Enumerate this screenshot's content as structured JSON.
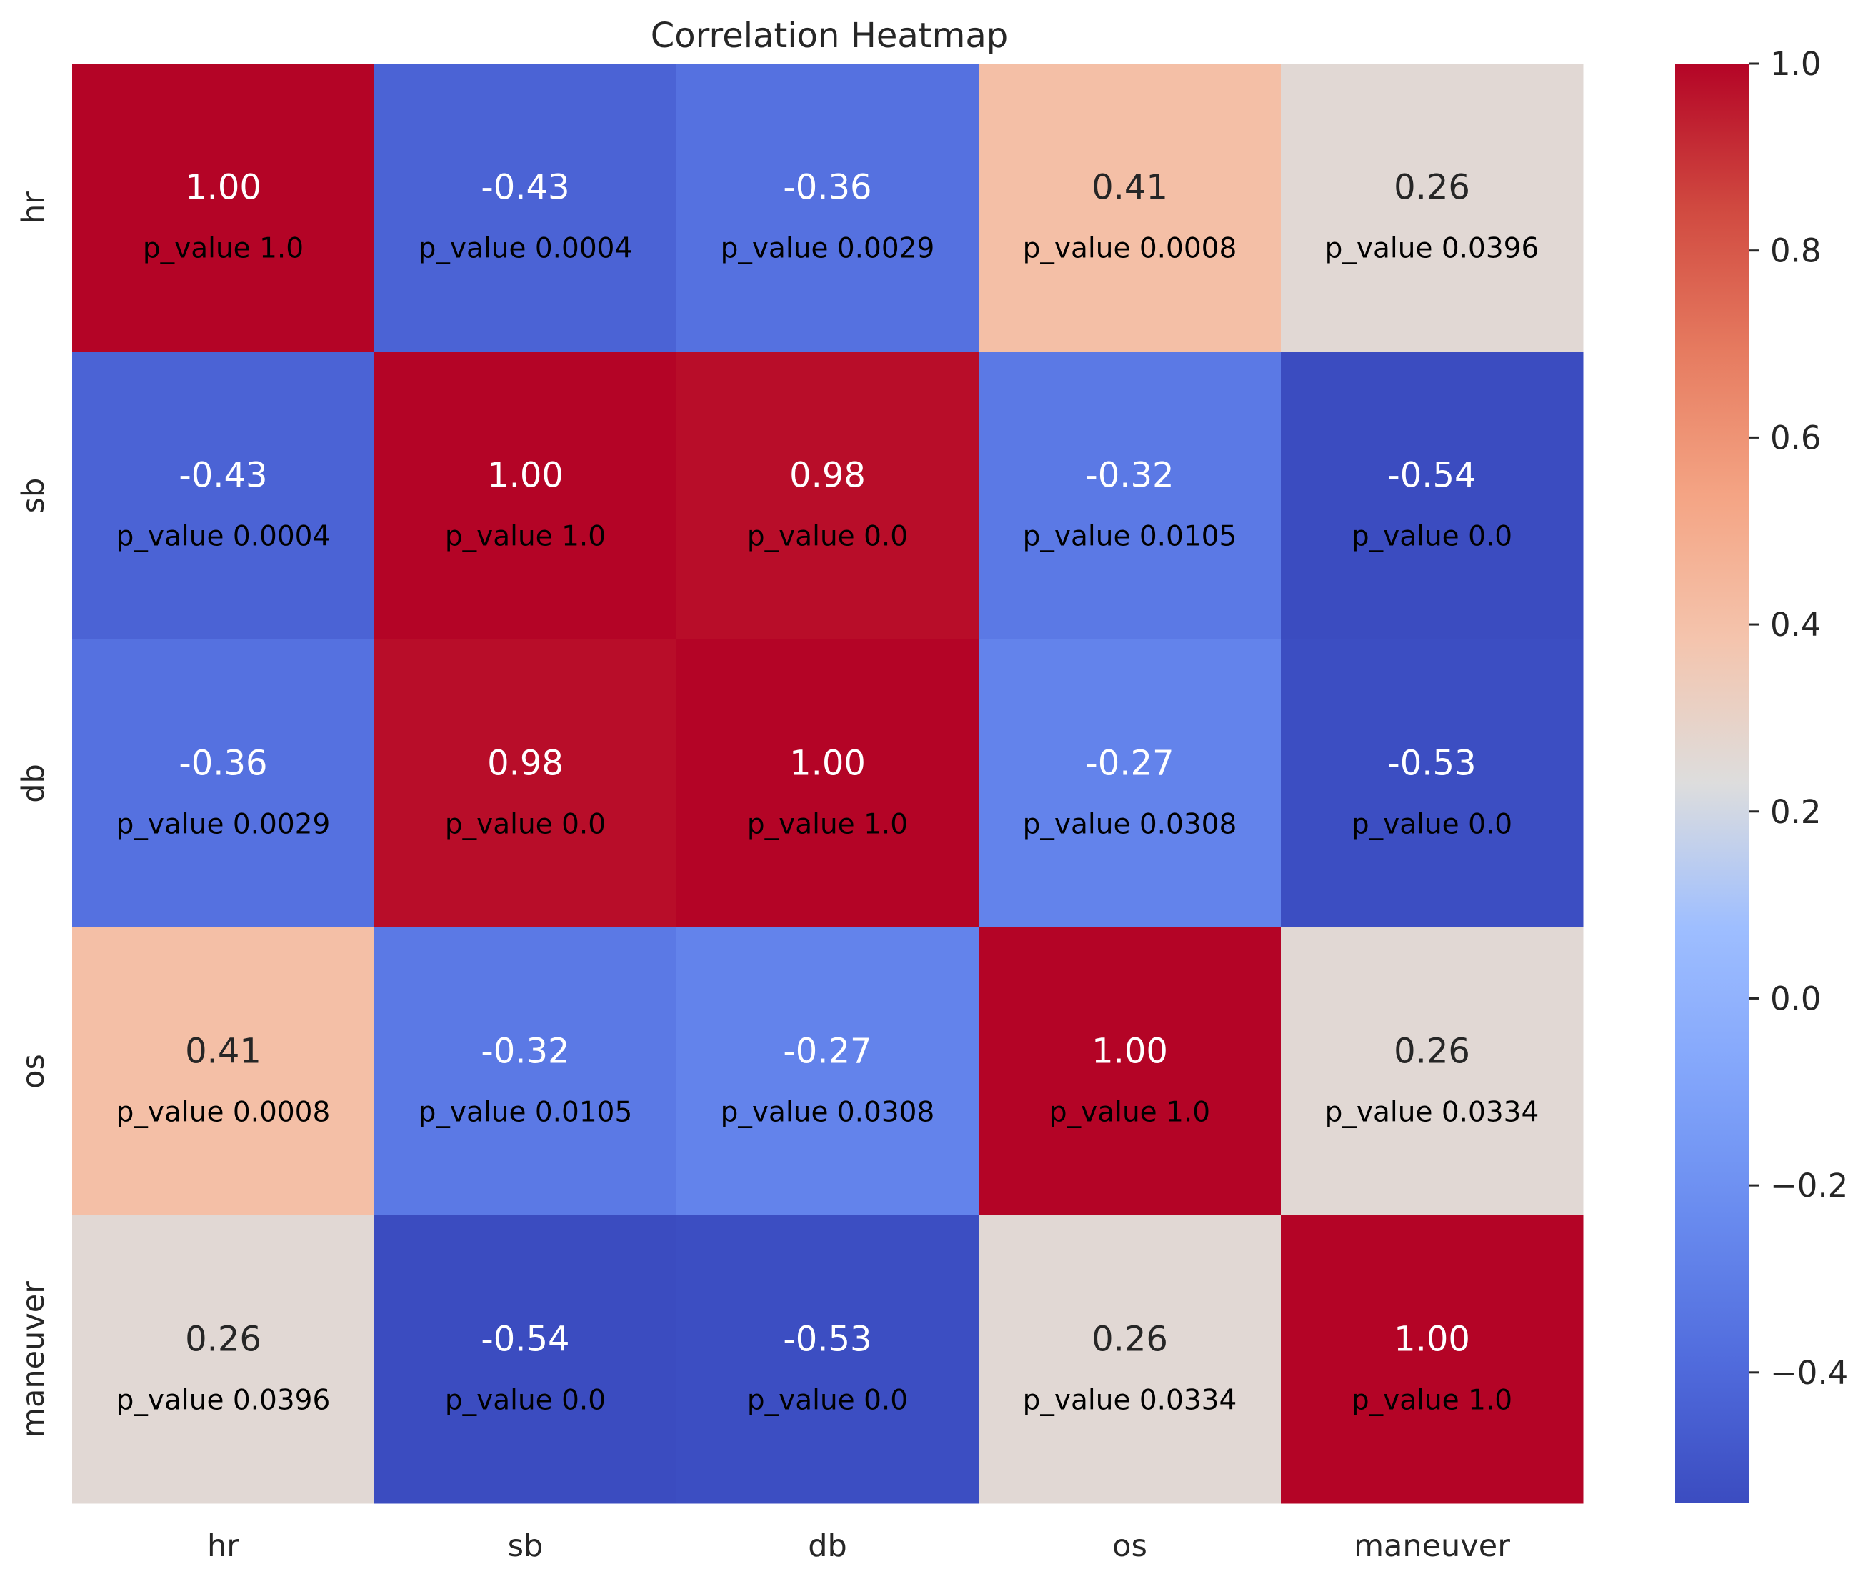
{
  "chart_data": {
    "type": "heatmap",
    "title": "Correlation Heatmap",
    "xlabel": "",
    "ylabel": "",
    "x_labels": [
      "hr",
      "sb",
      "db",
      "os",
      "maneuver"
    ],
    "y_labels": [
      "hr",
      "sb",
      "db",
      "os",
      "maneuver"
    ],
    "values": [
      [
        1.0,
        -0.43,
        -0.36,
        0.41,
        0.26
      ],
      [
        -0.43,
        1.0,
        0.98,
        -0.32,
        -0.54
      ],
      [
        -0.36,
        0.98,
        1.0,
        -0.27,
        -0.53
      ],
      [
        0.41,
        -0.32,
        -0.27,
        1.0,
        0.26
      ],
      [
        0.26,
        -0.54,
        -0.53,
        0.26,
        1.0
      ]
    ],
    "value_labels": [
      [
        "1.00",
        "-0.43",
        "-0.36",
        "0.41",
        "0.26"
      ],
      [
        "-0.43",
        "1.00",
        "0.98",
        "-0.32",
        "-0.54"
      ],
      [
        "-0.36",
        "0.98",
        "1.00",
        "-0.27",
        "-0.53"
      ],
      [
        "0.41",
        "-0.32",
        "-0.27",
        "1.00",
        "0.26"
      ],
      [
        "0.26",
        "-0.54",
        "-0.53",
        "0.26",
        "1.00"
      ]
    ],
    "annotations": [
      [
        "p_value 1.0",
        "p_value 0.0004",
        "p_value 0.0029",
        "p_value 0.0008",
        "p_value 0.0396"
      ],
      [
        "p_value 0.0004",
        "p_value 1.0",
        "p_value 0.0",
        "p_value 0.0105",
        "p_value 0.0"
      ],
      [
        "p_value 0.0029",
        "p_value 0.0",
        "p_value 1.0",
        "p_value 0.0308",
        "p_value 0.0"
      ],
      [
        "p_value 0.0008",
        "p_value 0.0105",
        "p_value 0.0308",
        "p_value 1.0",
        "p_value 0.0334"
      ],
      [
        "p_value 0.0396",
        "p_value 0.0",
        "p_value 0.0",
        "p_value 0.0334",
        "p_value 1.0"
      ]
    ],
    "colorbar": {
      "min": -0.54,
      "max": 1.0,
      "colormap": "coolwarm",
      "ticks": [
        1.0,
        0.8,
        0.6,
        0.4,
        0.2,
        0.0,
        -0.2,
        -0.4
      ],
      "tick_labels": [
        "1.0",
        "0.8",
        "0.6",
        "0.4",
        "0.2",
        "0.0",
        "−0.2",
        "−0.4"
      ]
    }
  },
  "colors": {
    "tick_text": "#262626",
    "annotation_light": "#ffffff",
    "annotation_dark": "#262626",
    "p_value_text": "#000000",
    "tick_line": "#262626"
  }
}
